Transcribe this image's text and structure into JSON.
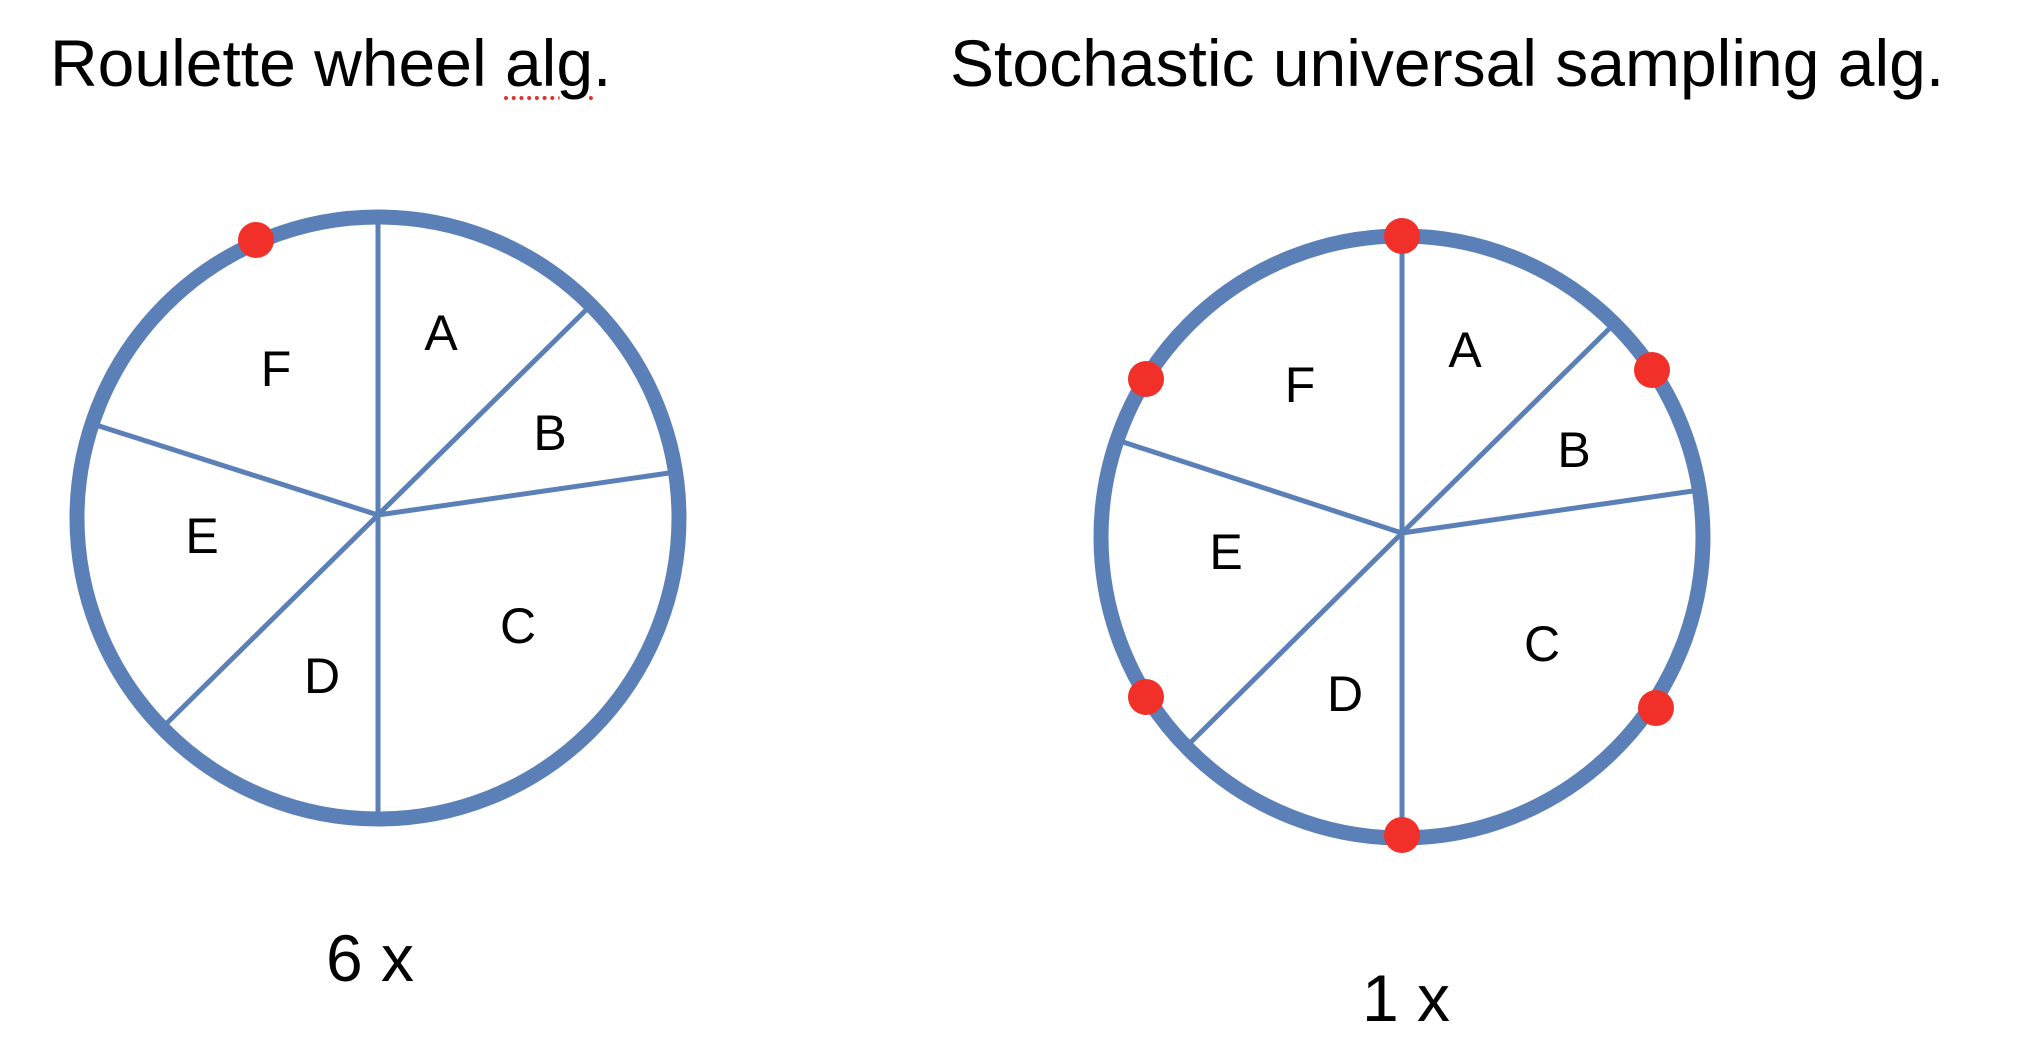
{
  "diagram": {
    "left": {
      "title": "Roulette wheel alg.",
      "title_main": "Roulette wheel ",
      "title_flagged": "alg",
      "title_end": ".",
      "count_label": "6 x",
      "segments": [
        "A",
        "B",
        "C",
        "D",
        "E",
        "F"
      ],
      "pointer_count": 1
    },
    "right": {
      "title": "Stochastic universal sampling alg.",
      "count_label": "1 x",
      "segments": [
        "A",
        "B",
        "C",
        "D",
        "E",
        "F"
      ],
      "pointer_count": 6
    },
    "colors": {
      "wheel": "#5b80b8",
      "pointer": "#f1302a",
      "spellcheck_underline": "#e0332b"
    }
  }
}
